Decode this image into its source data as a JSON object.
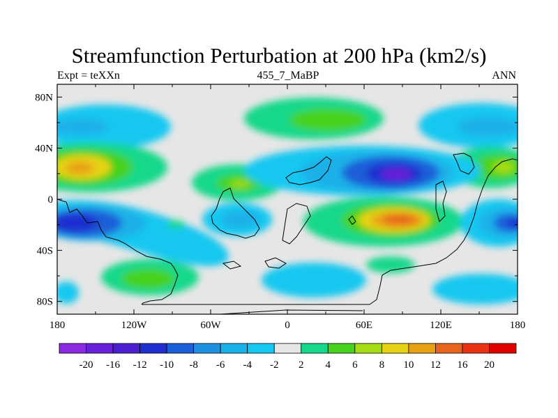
{
  "title": "Streamfunction Perturbation at 200 hPa (km2/s)",
  "left_string": "Expt = teXXn",
  "center_string": "455_7_MaBP",
  "right_string": "ANN",
  "chart_data": {
    "type": "heatmap",
    "projection": "cylindrical-equidistant",
    "x_axis": {
      "range": [
        -180,
        180
      ],
      "tick_values": [
        -180,
        -120,
        -60,
        0,
        60,
        120,
        180
      ],
      "tick_labels": [
        "180",
        "120W",
        "60W",
        "0",
        "60E",
        "120E",
        "180"
      ]
    },
    "y_axis": {
      "range": [
        -90,
        90
      ],
      "tick_values": [
        80,
        40,
        0,
        -40,
        -80
      ],
      "tick_labels": [
        "80N",
        "40N",
        "0",
        "40S",
        "80S"
      ]
    },
    "colorbar": {
      "labels": [
        "-20",
        "-16",
        "-12",
        "-10",
        "-8",
        "-6",
        "-4",
        "-2",
        "2",
        "4",
        "6",
        "8",
        "10",
        "12",
        "16",
        "20"
      ],
      "colors": [
        "#8a2be2",
        "#6a1fd8",
        "#4b1fd0",
        "#1f2fcf",
        "#1a5fd8",
        "#1f8fe0",
        "#1ab0e8",
        "#14c8f0",
        "#e6e6e6",
        "#14d88a",
        "#46d21e",
        "#a6dc14",
        "#e6d214",
        "#e8a014",
        "#e8641e",
        "#e83214",
        "#e00000"
      ]
    },
    "features": [
      {
        "name": "positive anomaly over Africa / Indian Ocean",
        "lon": 87,
        "lat": -17,
        "value": 12
      },
      {
        "name": "negative anomaly over Asia",
        "lon": 85,
        "lat": 20,
        "value": -16
      },
      {
        "name": "positive anomaly north Pacific",
        "lon": -164,
        "lat": 24,
        "value": 10
      },
      {
        "name": "negative anomaly south Pacific",
        "lon": -163,
        "lat": -20,
        "value": -12
      },
      {
        "name": "negative anomaly south-west Pacific",
        "lon": 170,
        "lat": -20,
        "value": -10
      },
      {
        "name": "positive anomaly Arctic Europe",
        "lon": 38,
        "lat": 62,
        "value": 6
      },
      {
        "name": "positive anomaly central Atlantic",
        "lon": -26,
        "lat": 12,
        "value": 6
      },
      {
        "name": "negative anomaly South America",
        "lon": -35,
        "lat": -14,
        "value": -6
      }
    ]
  }
}
